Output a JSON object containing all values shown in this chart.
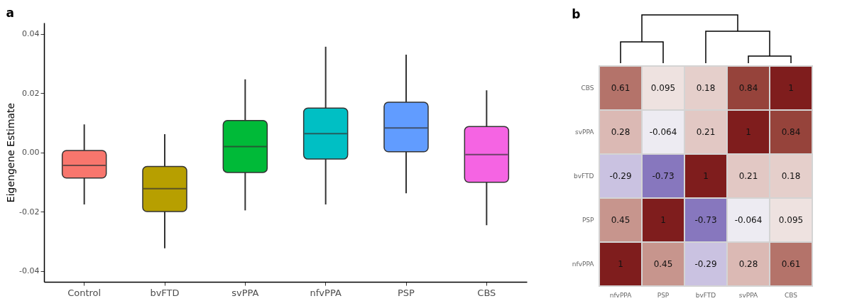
{
  "chart_data": [
    {
      "type": "box",
      "title": "a",
      "ylabel": "Eigengene Estimate",
      "categories": [
        "Control",
        "bvFTD",
        "svPPA",
        "nfvPPA",
        "PSP",
        "CBS"
      ],
      "colors": [
        "#f8766d",
        "#b79f00",
        "#00ba38",
        "#00bfc4",
        "#619cff",
        "#f564e3"
      ],
      "boxes": [
        {
          "low": -0.0175,
          "q1": -0.0086,
          "median": -0.0043,
          "q3": 0.0007,
          "high": 0.0095
        },
        {
          "low": -0.0323,
          "q1": -0.0199,
          "median": -0.0122,
          "q3": -0.0047,
          "high": 0.0062
        },
        {
          "low": -0.0195,
          "q1": -0.0067,
          "median": 0.002,
          "q3": 0.0108,
          "high": 0.0247
        },
        {
          "low": -0.0175,
          "q1": -0.0022,
          "median": 0.0064,
          "q3": 0.015,
          "high": 0.0357
        },
        {
          "low": -0.0137,
          "q1": 0.0003,
          "median": 0.0083,
          "q3": 0.017,
          "high": 0.033
        },
        {
          "low": -0.0245,
          "q1": -0.01,
          "median": -0.0007,
          "q3": 0.0088,
          "high": 0.021
        }
      ],
      "ylim": [
        -0.0436,
        0.0438
      ],
      "yticks": [
        -0.04,
        -0.02,
        {
          "value": 0,
          "label": "0.00"
        },
        0.02,
        0.04
      ],
      "grid": false,
      "legend": false
    },
    {
      "type": "heatmap",
      "title": "b",
      "categories": [
        "nfvPPA",
        "PSP",
        "bvFTD",
        "svPPA",
        "CBS"
      ],
      "y_categories": [
        "CBS",
        "svPPA",
        "bvFTD",
        "PSP",
        "nfvPPA"
      ],
      "cells": [
        [
          0.61,
          0.095,
          0.18,
          0.84,
          1
        ],
        [
          0.28,
          -0.064,
          0.21,
          1,
          0.84
        ],
        [
          -0.29,
          -0.73,
          1,
          0.21,
          0.18
        ],
        [
          0.45,
          1,
          -0.73,
          -0.064,
          0.095
        ],
        [
          1,
          0.45,
          -0.29,
          0.28,
          0.61
        ]
      ],
      "data_labels": true
    }
  ]
}
